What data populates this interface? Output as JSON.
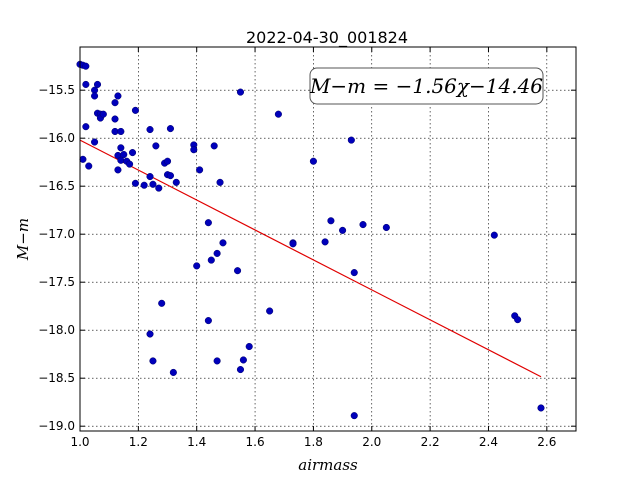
{
  "chart_data": {
    "type": "scatter",
    "title": "2022-04-30_001824",
    "xlabel": "airmass",
    "ylabel": "M−m",
    "xlim": [
      1.0,
      2.7
    ],
    "ylim": [
      -19.05,
      -15.05
    ],
    "y_inverted": true,
    "grid": true,
    "x_ticks": [
      1.0,
      1.2,
      1.4,
      1.6,
      1.8,
      2.0,
      2.2,
      2.4,
      2.6
    ],
    "x_tick_labels": [
      "1.0",
      "1.2",
      "1.4",
      "1.6",
      "1.8",
      "2.0",
      "2.2",
      "2.4",
      "2.6"
    ],
    "y_ticks": [
      -15.5,
      -16.0,
      -16.5,
      -17.0,
      -17.5,
      -18.0,
      -18.5,
      -19.0
    ],
    "y_tick_labels": [
      "−15.5",
      "−16.0",
      "−16.5",
      "−17.0",
      "−17.5",
      "−18.0",
      "−18.5",
      "−19.0"
    ],
    "annotation": "M−m = −1.56χ−14.46",
    "fit": {
      "slope": -1.56,
      "intercept": -14.46,
      "x_range": [
        1.0,
        2.58
      ],
      "color": "#e00000"
    },
    "marker_color": "#0000bb",
    "points": [
      [
        1.0,
        -15.23
      ],
      [
        1.01,
        -15.24
      ],
      [
        1.02,
        -15.25
      ],
      [
        1.02,
        -15.44
      ],
      [
        1.05,
        -15.5
      ],
      [
        1.05,
        -15.56
      ],
      [
        1.06,
        -15.44
      ],
      [
        1.06,
        -15.74
      ],
      [
        1.07,
        -15.75
      ],
      [
        1.07,
        -15.79
      ],
      [
        1.08,
        -15.75
      ],
      [
        1.12,
        -15.63
      ],
      [
        1.13,
        -15.56
      ],
      [
        1.12,
        -15.8
      ],
      [
        1.12,
        -15.93
      ],
      [
        1.14,
        -15.93
      ],
      [
        1.02,
        -15.88
      ],
      [
        1.05,
        -16.04
      ],
      [
        1.01,
        -16.22
      ],
      [
        1.03,
        -16.29
      ],
      [
        1.13,
        -16.18
      ],
      [
        1.14,
        -16.1
      ],
      [
        1.14,
        -16.23
      ],
      [
        1.15,
        -16.17
      ],
      [
        1.16,
        -16.24
      ],
      [
        1.17,
        -16.27
      ],
      [
        1.13,
        -16.33
      ],
      [
        1.18,
        -16.15
      ],
      [
        1.19,
        -15.71
      ],
      [
        1.19,
        -16.47
      ],
      [
        1.22,
        -16.49
      ],
      [
        1.24,
        -16.4
      ],
      [
        1.24,
        -15.91
      ],
      [
        1.25,
        -16.48
      ],
      [
        1.26,
        -16.08
      ],
      [
        1.27,
        -16.52
      ],
      [
        1.29,
        -16.26
      ],
      [
        1.3,
        -16.24
      ],
      [
        1.3,
        -16.38
      ],
      [
        1.31,
        -15.9
      ],
      [
        1.31,
        -16.39
      ],
      [
        1.33,
        -16.46
      ],
      [
        1.39,
        -16.07
      ],
      [
        1.39,
        -16.12
      ],
      [
        1.41,
        -16.33
      ],
      [
        1.46,
        -16.08
      ],
      [
        1.48,
        -16.46
      ],
      [
        1.55,
        -15.52
      ],
      [
        1.68,
        -15.75
      ],
      [
        1.4,
        -17.33
      ],
      [
        1.44,
        -16.88
      ],
      [
        1.45,
        -17.27
      ],
      [
        1.47,
        -17.2
      ],
      [
        1.49,
        -17.09
      ],
      [
        1.54,
        -17.38
      ],
      [
        1.28,
        -17.72
      ],
      [
        1.24,
        -18.04
      ],
      [
        1.25,
        -18.32
      ],
      [
        1.32,
        -18.44
      ],
      [
        1.44,
        -17.9
      ],
      [
        1.47,
        -18.32
      ],
      [
        1.55,
        -18.41
      ],
      [
        1.56,
        -18.31
      ],
      [
        1.58,
        -18.17
      ],
      [
        1.65,
        -17.8
      ],
      [
        1.73,
        -17.09
      ],
      [
        1.73,
        -17.1
      ],
      [
        1.8,
        -16.24
      ],
      [
        1.84,
        -17.08
      ],
      [
        1.86,
        -16.86
      ],
      [
        1.9,
        -16.96
      ],
      [
        1.93,
        -16.02
      ],
      [
        1.94,
        -17.4
      ],
      [
        1.97,
        -16.9
      ],
      [
        2.05,
        -16.93
      ],
      [
        1.94,
        -18.89
      ],
      [
        2.42,
        -17.01
      ],
      [
        2.49,
        -17.85
      ],
      [
        2.5,
        -17.89
      ],
      [
        2.58,
        -18.81
      ]
    ]
  }
}
